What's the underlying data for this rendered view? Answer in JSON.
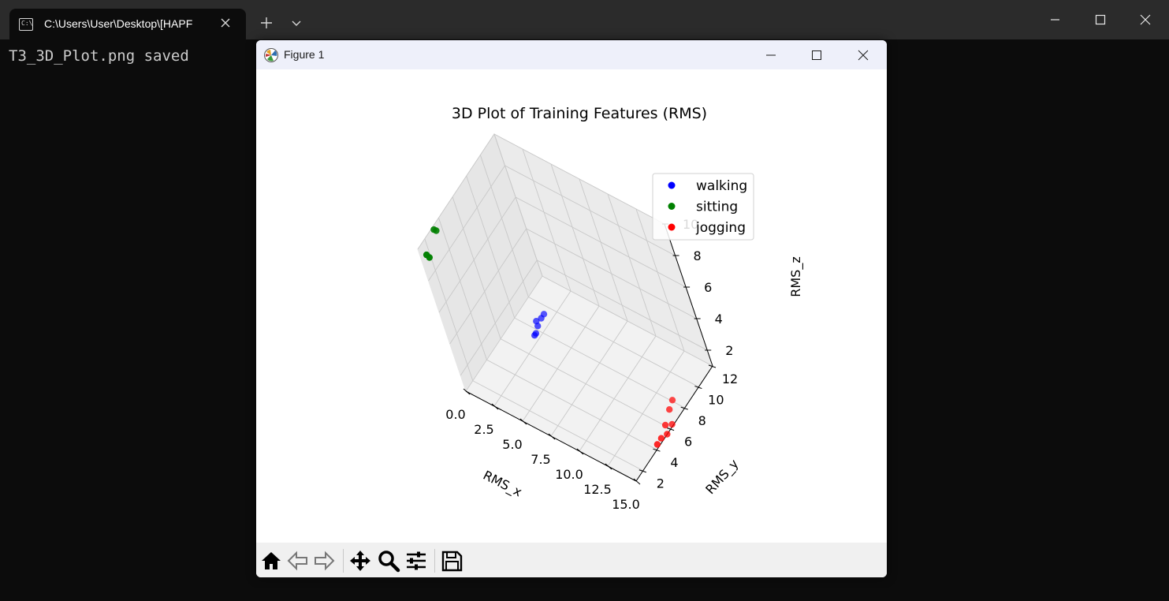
{
  "terminal": {
    "tab_title": "C:\\Users\\User\\Desktop\\[HAPF",
    "tab_icon_glyph": "C:\\",
    "output_line": "T3_3D_Plot.png saved"
  },
  "figure_window": {
    "title": "Figure 1",
    "plot_title": "3D Plot of Training Features (RMS)"
  },
  "chart_data": {
    "type": "scatter",
    "projection": "3d",
    "title": "3D Plot of Training Features (RMS)",
    "xlabel": "RMS_x",
    "ylabel": "RMS_y",
    "zlabel": "RMS_z",
    "xlim": [
      0,
      15
    ],
    "ylim": [
      1,
      12
    ],
    "zlim": [
      1,
      10
    ],
    "x_ticks": [
      "0.0",
      "2.5",
      "5.0",
      "7.5",
      "10.0",
      "12.5",
      "15.0"
    ],
    "y_ticks": [
      "2",
      "4",
      "6",
      "8",
      "10",
      "12"
    ],
    "z_ticks": [
      "2",
      "4",
      "6",
      "8",
      "10"
    ],
    "grid": true,
    "legend_position": "top-right",
    "series": [
      {
        "name": "walking",
        "color": "#0000ff",
        "points": [
          [
            3.1,
            6.6,
            2.0
          ],
          [
            3.2,
            6.7,
            2.1
          ],
          [
            3.1,
            7.2,
            2.2
          ],
          [
            3.0,
            7.3,
            2.4
          ],
          [
            3.3,
            7.6,
            2.5
          ],
          [
            3.4,
            7.9,
            2.6
          ]
        ]
      },
      {
        "name": "sitting",
        "color": "#008000",
        "points": [
          [
            0.4,
            1.3,
            9.6
          ],
          [
            0.5,
            1.4,
            9.4
          ],
          [
            0.3,
            2.9,
            10.1
          ],
          [
            0.4,
            3.0,
            10.0
          ]
        ]
      },
      {
        "name": "jogging",
        "color": "#ff0000",
        "points": [
          [
            15.0,
            4.2,
            1.2
          ],
          [
            15.2,
            4.6,
            1.4
          ],
          [
            15.3,
            5.2,
            1.3
          ],
          [
            15.1,
            5.5,
            1.6
          ],
          [
            15.4,
            5.9,
            1.5
          ],
          [
            15.2,
            6.3,
            2.1
          ],
          [
            15.3,
            6.8,
            2.4
          ]
        ]
      }
    ]
  }
}
